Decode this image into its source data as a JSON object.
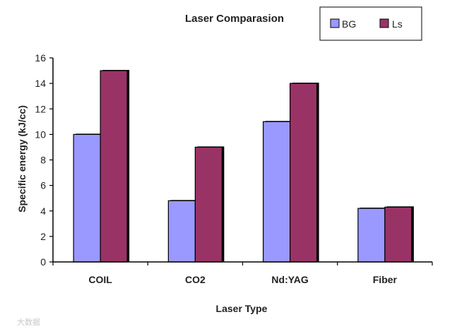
{
  "chart_data": {
    "type": "bar",
    "title": "Laser Comparasion",
    "xlabel": "Laser Type",
    "ylabel": "Specific energy (kJ/cc)",
    "categories": [
      "COIL",
      "CO2",
      "Nd:YAG",
      "Fiber"
    ],
    "series": [
      {
        "name": "BG",
        "values": [
          10.0,
          4.8,
          11.0,
          4.2
        ],
        "color": "#9999ff"
      },
      {
        "name": "Ls",
        "values": [
          15.0,
          9.0,
          14.0,
          4.3
        ],
        "color": "#993366"
      }
    ],
    "ylim": [
      0,
      16
    ],
    "yticks": [
      0,
      2,
      4,
      6,
      8,
      10,
      12,
      14,
      16
    ],
    "grid": false,
    "legend": "top-right"
  },
  "watermark": "大数据"
}
